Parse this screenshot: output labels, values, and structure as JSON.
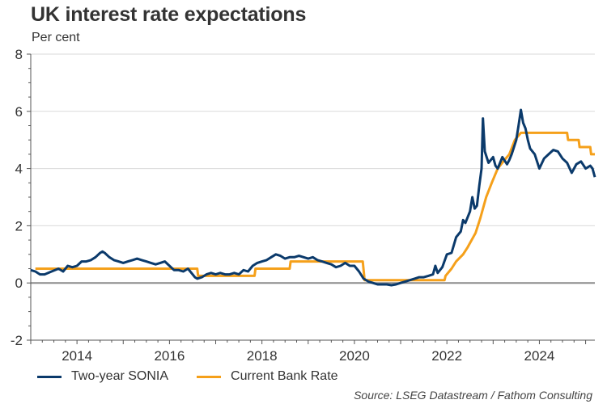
{
  "chart_data": {
    "type": "line",
    "title": "UK interest rate expectations",
    "subtitle": "Per cent",
    "xlabel": "",
    "ylabel": "Per cent",
    "xlim": [
      2013.0,
      2025.2
    ],
    "ylim": [
      -2,
      8
    ],
    "yticks": [
      -2,
      0,
      2,
      4,
      6,
      8
    ],
    "xticks": [
      2014,
      2016,
      2018,
      2020,
      2022,
      2024
    ],
    "grid": true,
    "legend_position": "bottom-left",
    "source": "Source: LSEG Datastream / Fathom Consulting",
    "series": [
      {
        "name": "Two-year SONIA",
        "color": "#0b3a6b",
        "x": [
          2013.0,
          2013.1,
          2013.2,
          2013.3,
          2013.45,
          2013.6,
          2013.7,
          2013.8,
          2013.9,
          2014.0,
          2014.1,
          2014.2,
          2014.3,
          2014.4,
          2014.5,
          2014.55,
          2014.6,
          2014.7,
          2014.8,
          2014.9,
          2015.0,
          2015.1,
          2015.2,
          2015.3,
          2015.4,
          2015.5,
          2015.6,
          2015.7,
          2015.8,
          2015.9,
          2016.0,
          2016.1,
          2016.2,
          2016.3,
          2016.4,
          2016.5,
          2016.55,
          2016.6,
          2016.7,
          2016.8,
          2016.9,
          2017.0,
          2017.1,
          2017.2,
          2017.3,
          2017.4,
          2017.5,
          2017.6,
          2017.7,
          2017.8,
          2017.9,
          2018.0,
          2018.1,
          2018.2,
          2018.3,
          2018.4,
          2018.5,
          2018.6,
          2018.7,
          2018.8,
          2018.9,
          2019.0,
          2019.1,
          2019.2,
          2019.3,
          2019.4,
          2019.5,
          2019.6,
          2019.7,
          2019.8,
          2019.9,
          2020.0,
          2020.1,
          2020.2,
          2020.3,
          2020.4,
          2020.5,
          2020.6,
          2020.7,
          2020.8,
          2020.9,
          2021.0,
          2021.1,
          2021.2,
          2021.3,
          2021.4,
          2021.5,
          2021.6,
          2021.7,
          2021.75,
          2021.8,
          2021.9,
          2022.0,
          2022.1,
          2022.2,
          2022.3,
          2022.35,
          2022.4,
          2022.5,
          2022.55,
          2022.6,
          2022.65,
          2022.7,
          2022.75,
          2022.78,
          2022.82,
          2022.9,
          2023.0,
          2023.05,
          2023.1,
          2023.2,
          2023.3,
          2023.35,
          2023.4,
          2023.5,
          2023.55,
          2023.6,
          2023.65,
          2023.7,
          2023.75,
          2023.8,
          2023.9,
          2024.0,
          2024.1,
          2024.2,
          2024.3,
          2024.4,
          2024.5,
          2024.6,
          2024.7,
          2024.75,
          2024.8,
          2024.9,
          2025.0,
          2025.1,
          2025.15,
          2025.2
        ],
        "values": [
          0.45,
          0.4,
          0.3,
          0.3,
          0.4,
          0.5,
          0.4,
          0.6,
          0.55,
          0.6,
          0.75,
          0.75,
          0.8,
          0.9,
          1.05,
          1.1,
          1.05,
          0.9,
          0.8,
          0.75,
          0.7,
          0.75,
          0.8,
          0.85,
          0.8,
          0.75,
          0.7,
          0.65,
          0.7,
          0.75,
          0.6,
          0.45,
          0.45,
          0.4,
          0.5,
          0.3,
          0.2,
          0.15,
          0.2,
          0.3,
          0.35,
          0.3,
          0.35,
          0.3,
          0.3,
          0.35,
          0.3,
          0.45,
          0.4,
          0.6,
          0.7,
          0.75,
          0.8,
          0.9,
          1.0,
          0.95,
          0.85,
          0.9,
          0.9,
          0.95,
          0.9,
          0.85,
          0.9,
          0.8,
          0.75,
          0.7,
          0.65,
          0.55,
          0.6,
          0.7,
          0.6,
          0.6,
          0.4,
          0.15,
          0.05,
          0.0,
          -0.05,
          -0.05,
          -0.05,
          -0.08,
          -0.05,
          0.0,
          0.05,
          0.1,
          0.15,
          0.2,
          0.2,
          0.25,
          0.3,
          0.6,
          0.35,
          0.55,
          1.0,
          1.05,
          1.6,
          1.8,
          2.2,
          2.1,
          2.5,
          3.0,
          2.6,
          2.7,
          3.4,
          4.0,
          5.75,
          4.6,
          4.2,
          4.4,
          4.1,
          4.0,
          4.4,
          4.15,
          4.3,
          4.5,
          5.0,
          5.5,
          6.05,
          5.6,
          5.4,
          5.0,
          4.7,
          4.5,
          4.0,
          4.35,
          4.5,
          4.65,
          4.6,
          4.35,
          4.2,
          3.85,
          4.0,
          4.15,
          4.25,
          4.0,
          4.1,
          4.0,
          3.7
        ],
        "line_width": 3
      },
      {
        "name": "Current Bank Rate",
        "color": "#f5a01a",
        "x": [
          2013.1,
          2016.6,
          2016.62,
          2017.84,
          2017.86,
          2018.6,
          2018.62,
          2020.18,
          2020.22,
          2021.95,
          2021.97,
          2022.1,
          2022.2,
          2022.35,
          2022.45,
          2022.62,
          2022.72,
          2022.85,
          2022.97,
          2023.1,
          2023.22,
          2023.35,
          2023.47,
          2023.6,
          2024.6,
          2024.62,
          2024.85,
          2024.87,
          2025.1,
          2025.12,
          2025.2
        ],
        "values": [
          0.5,
          0.5,
          0.25,
          0.25,
          0.5,
          0.5,
          0.75,
          0.75,
          0.1,
          0.1,
          0.25,
          0.5,
          0.75,
          1.0,
          1.25,
          1.75,
          2.25,
          3.0,
          3.5,
          4.0,
          4.25,
          4.5,
          5.0,
          5.25,
          5.25,
          5.0,
          5.0,
          4.75,
          4.75,
          4.5,
          4.5
        ],
        "line_width": 3
      }
    ]
  }
}
